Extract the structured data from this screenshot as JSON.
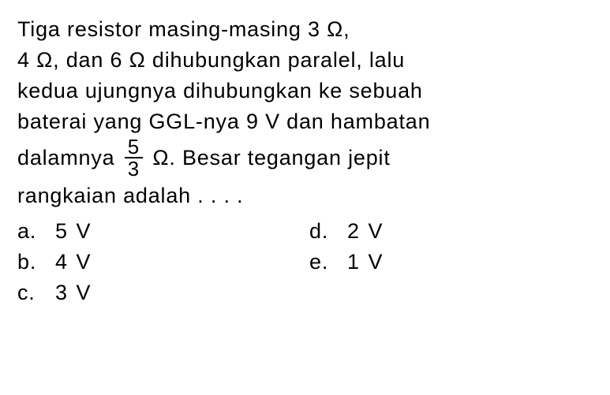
{
  "text_color": "#000000",
  "background_color": "#ffffff",
  "font_size_pt": 20,
  "question": {
    "line1_a": "Tiga resistor masing-masing 3 ",
    "omega": "Ω",
    "comma": ",",
    "line2_a": "4 ",
    "line2_b": ", dan 6 ",
    "line2_c": " dihubungkan paralel, lalu",
    "line3": "kedua ujungnya dihubungkan ke sebuah",
    "line4": "baterai yang GGL-nya 9 V dan hambatan",
    "line5_a": "dalamnya ",
    "frac_num": "5",
    "frac_den": "3",
    "line5_b": ". Besar tegangan jepit",
    "line6": "rangkaian adalah . . . ."
  },
  "options": {
    "a": {
      "letter": "a.",
      "value": "5 V"
    },
    "b": {
      "letter": "b.",
      "value": "4 V"
    },
    "c": {
      "letter": "c.",
      "value": "3 V"
    },
    "d": {
      "letter": "d.",
      "value": "2 V"
    },
    "e": {
      "letter": "e.",
      "value": "1 V"
    }
  }
}
